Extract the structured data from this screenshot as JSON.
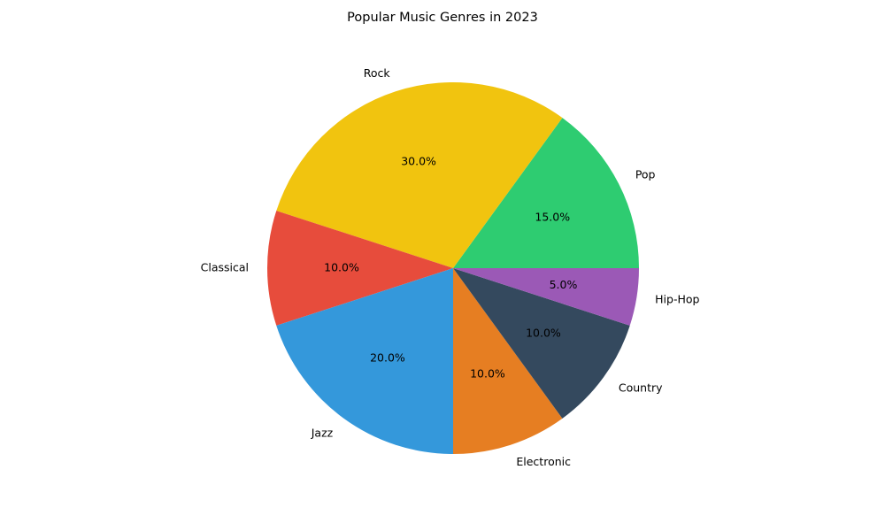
{
  "chart_data": {
    "type": "pie",
    "title": "Popular Music Genres in 2023",
    "slices": [
      {
        "label": "Pop",
        "value": 15,
        "pct_label": "15.0%",
        "color": "#2ecc71"
      },
      {
        "label": "Rock",
        "value": 30,
        "pct_label": "30.0%",
        "color": "#f1c40f"
      },
      {
        "label": "Classical",
        "value": 10,
        "pct_label": "10.0%",
        "color": "#e74c3c"
      },
      {
        "label": "Jazz",
        "value": 20,
        "pct_label": "20.0%",
        "color": "#3498db"
      },
      {
        "label": "Electronic",
        "value": 10,
        "pct_label": "10.0%",
        "color": "#e67e22"
      },
      {
        "label": "Country",
        "value": 10,
        "pct_label": "10.0%",
        "color": "#34495e"
      },
      {
        "label": "Hip-Hop",
        "value": 5,
        "pct_label": "5.0%",
        "color": "#9b59b6"
      }
    ],
    "start_angle_deg": 0,
    "direction": "counterclockwise"
  }
}
